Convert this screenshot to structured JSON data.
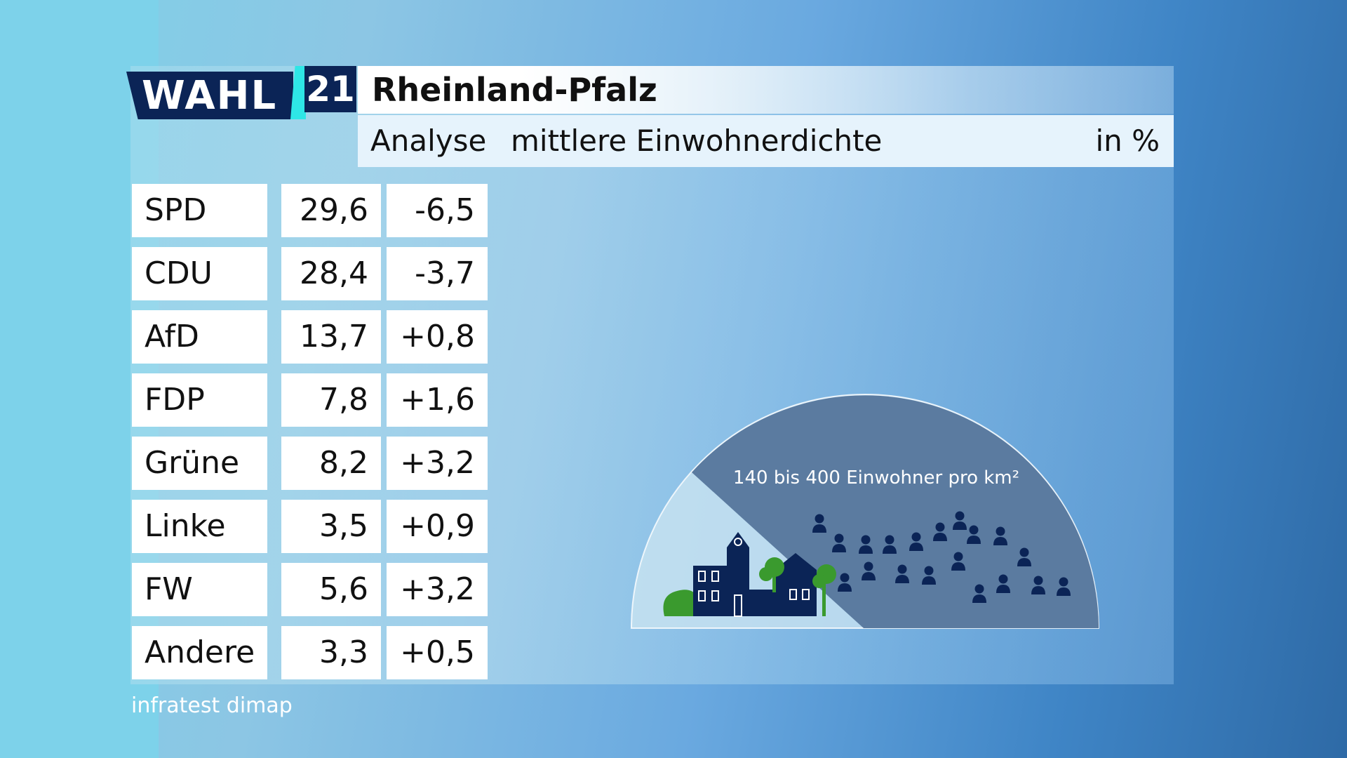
{
  "header": {
    "logo_text": "WAHL",
    "logo_number": "21",
    "title": "Rheinland-Pfalz",
    "subtitle_left": "Analyse",
    "subtitle_main": "mittlere Einwohnerdichte",
    "unit": "in %"
  },
  "results": [
    {
      "party": "SPD",
      "share": "29,6",
      "change": "-6,5"
    },
    {
      "party": "CDU",
      "share": "28,4",
      "change": "-3,7"
    },
    {
      "party": "AfD",
      "share": "13,7",
      "change": "+0,8"
    },
    {
      "party": "FDP",
      "share": "7,8",
      "change": "+1,6"
    },
    {
      "party": "Grüne",
      "share": "8,2",
      "change": "+3,2"
    },
    {
      "party": "Linke",
      "share": "3,5",
      "change": "+0,9"
    },
    {
      "party": "FW",
      "share": "5,6",
      "change": "+3,2"
    },
    {
      "party": "Andere",
      "share": "3,3",
      "change": "+0,5"
    }
  ],
  "density_gauge": {
    "label": "140 bis 400 Einwohner pro km²",
    "segment_color": "#5b7ba0",
    "icons": [
      "town-icon",
      "tree-icon",
      "bush-icon",
      "person-icon"
    ]
  },
  "source": "infratest dimap",
  "colors": {
    "navy": "#0b2456",
    "accent_cyan": "#2ee6e6",
    "green": "#3a9a2e"
  }
}
